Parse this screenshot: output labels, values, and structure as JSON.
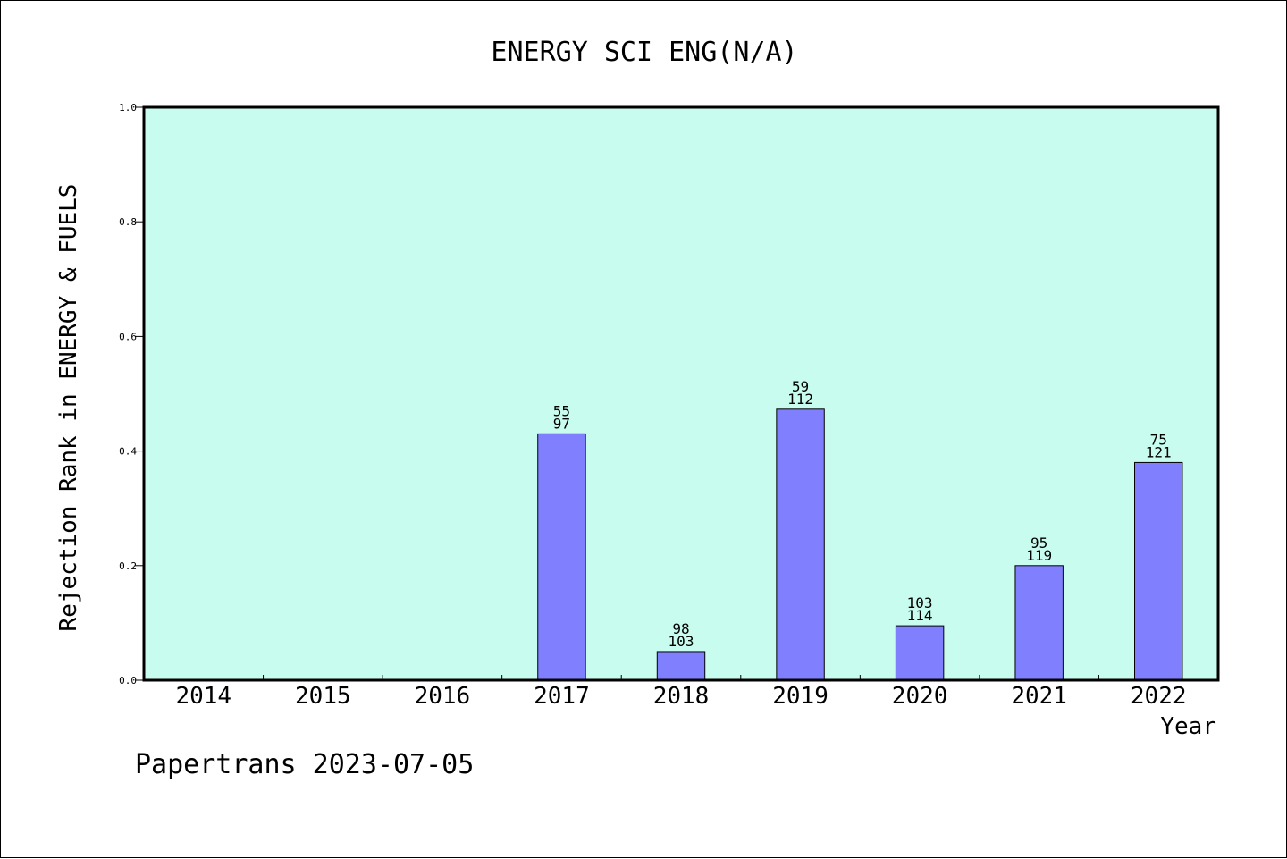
{
  "chart_data": {
    "type": "bar",
    "title": "ENERGY SCI ENG(N/A)",
    "xlabel": "Year",
    "ylabel": "Rejection Rank in ENERGY & FUELS",
    "ylim": [
      0,
      1.0
    ],
    "yticks": [
      "0.0",
      "0.2",
      "0.4",
      "0.6",
      "0.8",
      "1.0"
    ],
    "categories": [
      "2014",
      "2015",
      "2016",
      "2017",
      "2018",
      "2019",
      "2020",
      "2021",
      "2022"
    ],
    "values": [
      null,
      null,
      null,
      0.43,
      0.05,
      0.473,
      0.095,
      0.2,
      0.38
    ],
    "label_top": [
      "",
      "",
      "",
      "55",
      "98",
      "59",
      "103",
      "95",
      "75"
    ],
    "label_bottom": [
      "",
      "",
      "",
      "97",
      "103",
      "112",
      "114",
      "119",
      "121"
    ],
    "plot_background": "#c8fcee",
    "bar_color": "#8080ff",
    "grid": false
  },
  "footer": "Papertrans 2023-07-05"
}
